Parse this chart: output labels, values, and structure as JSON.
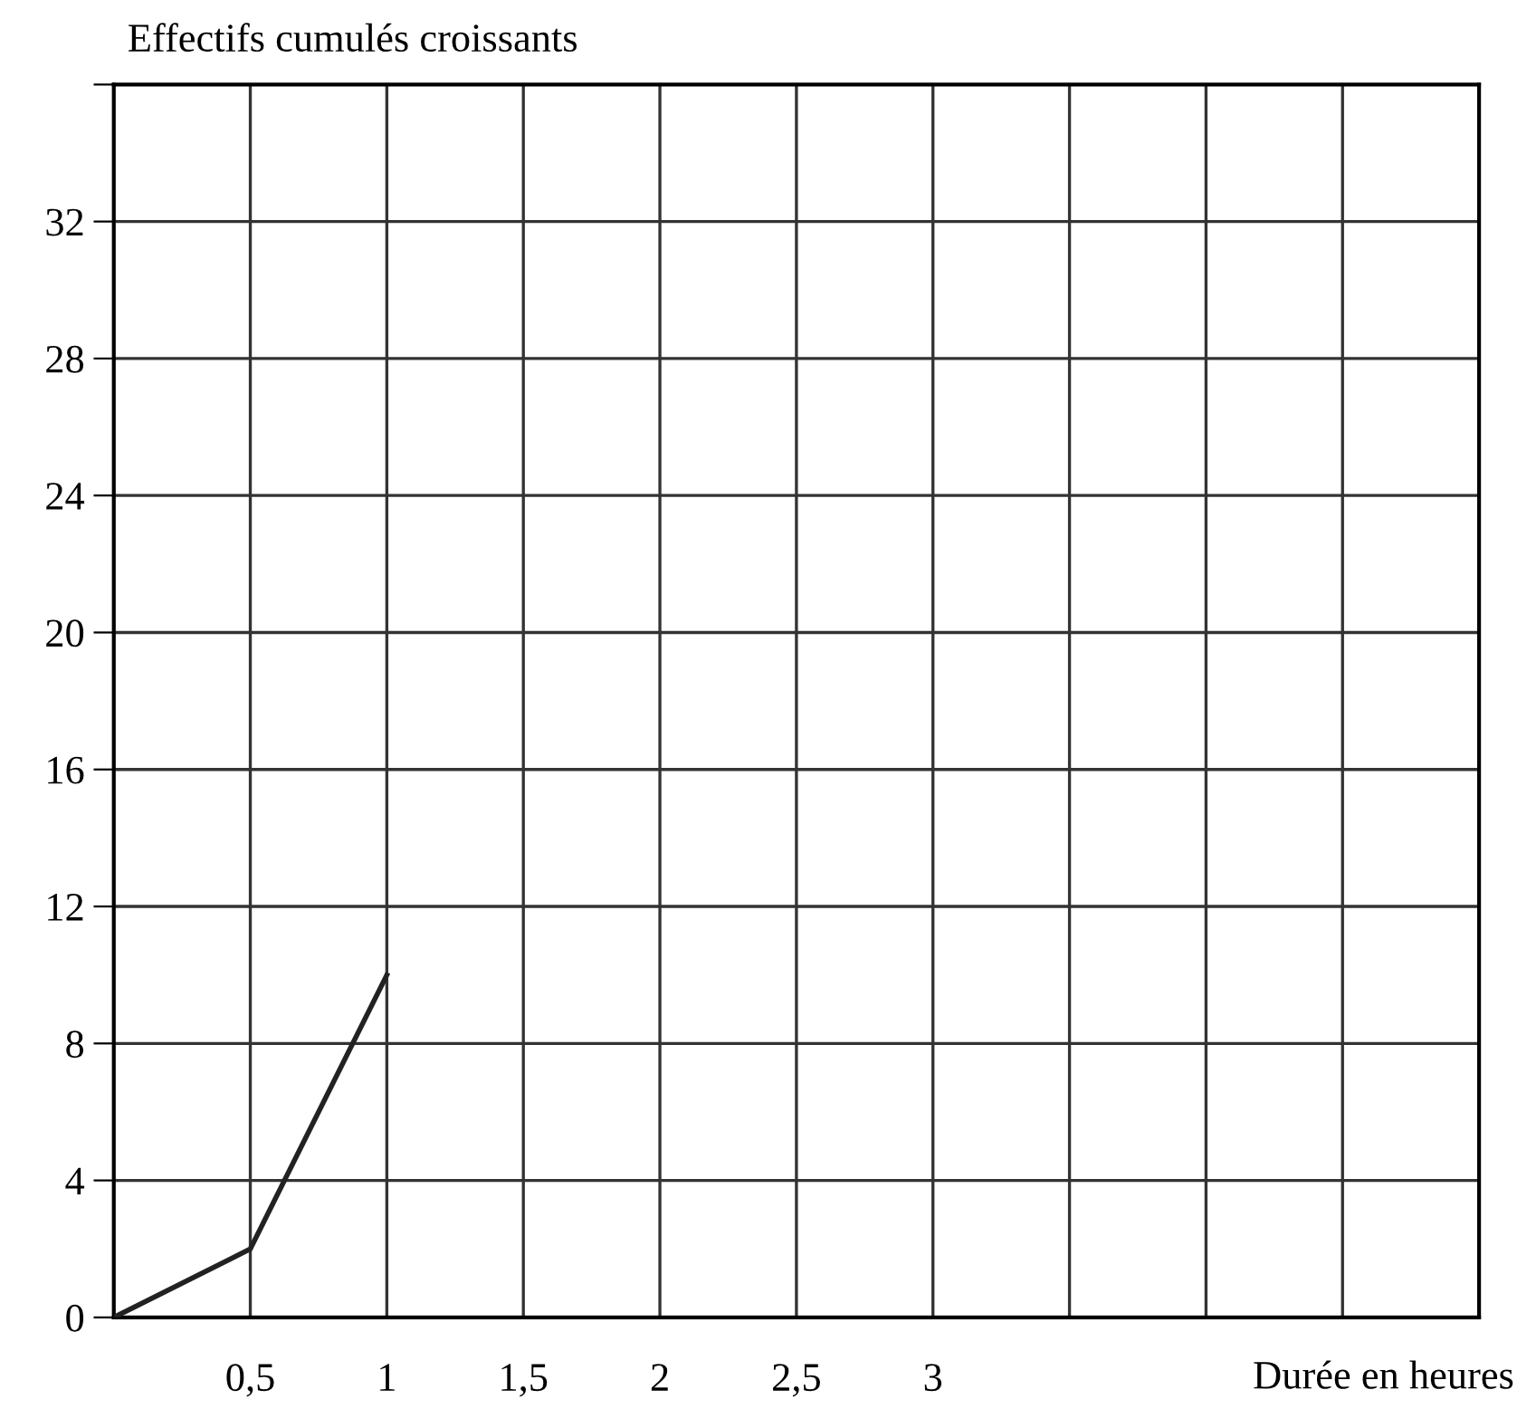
{
  "chart_data": {
    "type": "line",
    "xlabel": "Durée en heures",
    "ylabel": "Effectifs cumulés croissants",
    "x": [
      0,
      0.5,
      1
    ],
    "series": [
      {
        "color": "#222222",
        "values": [
          0,
          2,
          10
        ]
      }
    ],
    "xlim": [
      0,
      5
    ],
    "ylim": [
      0,
      36
    ],
    "xticks": [
      {
        "value": 0,
        "label": null
      },
      {
        "value": 0.5,
        "label": "0,5"
      },
      1,
      {
        "value": 1.5,
        "label": "1,5"
      },
      2,
      {
        "value": 2.5,
        "label": "2,5"
      },
      3,
      {
        "value": 3.5,
        "label": null
      },
      {
        "value": 4,
        "label": null
      },
      {
        "value": 4.5,
        "label": null
      },
      {
        "value": 5,
        "label": null
      }
    ],
    "yticks": [
      0,
      4,
      8,
      12,
      16,
      20,
      24,
      28,
      32,
      {
        "value": 36,
        "label": null
      }
    ],
    "grid": true,
    "marker": "none",
    "line_style": "solid"
  }
}
